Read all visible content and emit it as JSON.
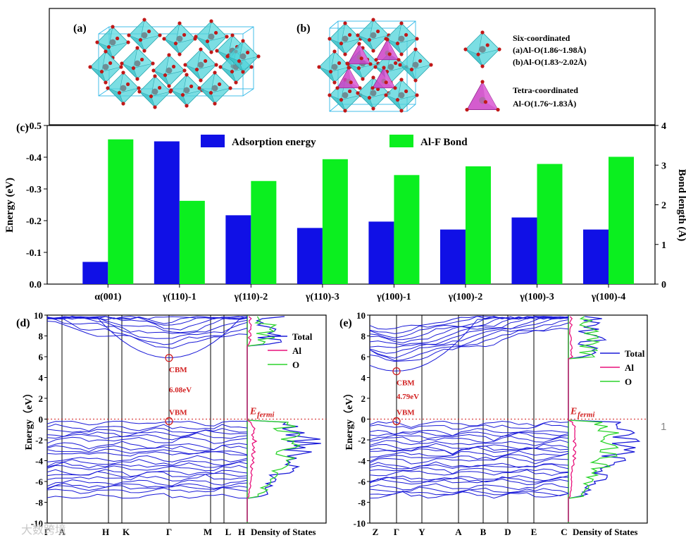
{
  "colors": {
    "blue": "#1010e6",
    "green": "#0bef1f",
    "al": "#e8107a",
    "o": "#2cd42c",
    "fermi": "#d22020",
    "crystal": "#4fd3da",
    "tetra": "#cc3fc6",
    "atom": "#c01818"
  },
  "structure": {
    "label_a": "(a)",
    "label_b": "(b)",
    "legend": {
      "six_title": "Six-coordinated",
      "six_a": "(a)Al-O(1.86~1.98Å)",
      "six_b": "(b)Al-O(1.83~2.02Å)",
      "tetra_title": "Tetra-coordinated",
      "tetra_range": "Al-O(1.76~1.83Å)"
    }
  },
  "chart_data": [
    {
      "panel": "(c)",
      "type": "bar",
      "categories": [
        "α(001)",
        "γ(110)-1",
        "γ(110)-2",
        "γ(110)-3",
        "γ(100)-1",
        "γ(100)-2",
        "γ(100)-3",
        "γ(100)-4"
      ],
      "series": [
        {
          "name": "Adsorption energy",
          "axis": "left",
          "values": [
            -0.07,
            -0.45,
            -0.217,
            -0.177,
            -0.197,
            -0.172,
            -0.21,
            -0.172
          ]
        },
        {
          "name": "Al-F Bond",
          "axis": "right",
          "values": [
            3.65,
            2.1,
            2.6,
            3.15,
            2.75,
            2.97,
            3.03,
            3.21
          ]
        }
      ],
      "ylabel": "Energy (eV)",
      "y2label": "Bond length (Å)",
      "ylim": [
        0,
        -0.5
      ],
      "y2lim": [
        0,
        4
      ],
      "yticks": [
        "0.0",
        "-0.1",
        "-0.2",
        "-0.3",
        "-0.4",
        "-0.5"
      ],
      "y2ticks": [
        "0",
        "1",
        "2",
        "3",
        "4"
      ],
      "legend": "top"
    },
    {
      "panel": "(d)",
      "type": "line",
      "ylabel": "Energy（eV）",
      "ylim": [
        -10,
        10
      ],
      "yticks": [
        "10",
        "8",
        "6",
        "4",
        "2",
        "0",
        "-2",
        "-4",
        "-6",
        "-8",
        "-10"
      ],
      "kpoints": [
        "Γ",
        "A",
        "H",
        "K",
        "Γ",
        "M",
        "L",
        "H"
      ],
      "dos_label": "Density of States",
      "legend_entries": [
        "Total",
        "Al",
        "O"
      ],
      "cbm_label": "CBM",
      "vbm_label": "VBM",
      "gap_label": "6.08eV",
      "cbm_energy": 5.88,
      "vbm_energy": -0.2,
      "fermi_label": "fermi"
    },
    {
      "panel": "(e)",
      "type": "line",
      "ylabel": "Energy（eV）",
      "ylim": [
        -10,
        10
      ],
      "yticks": [
        "10",
        "8",
        "6",
        "4",
        "2",
        "0",
        "-2",
        "-4",
        "-6",
        "-8",
        "-10"
      ],
      "kpoints": [
        "Z",
        "Γ",
        "Y",
        "A",
        "B",
        "D",
        "E",
        "C"
      ],
      "dos_label": "Density of States",
      "legend_entries": [
        "Total",
        "Al",
        "O"
      ],
      "cbm_label": "CBM",
      "vbm_label": "VBM",
      "gap_label": "4.79eV",
      "cbm_energy": 4.6,
      "vbm_energy": -0.2,
      "fermi_label": "fermi"
    }
  ],
  "page_number": "1",
  "watermark": "大数跨境"
}
